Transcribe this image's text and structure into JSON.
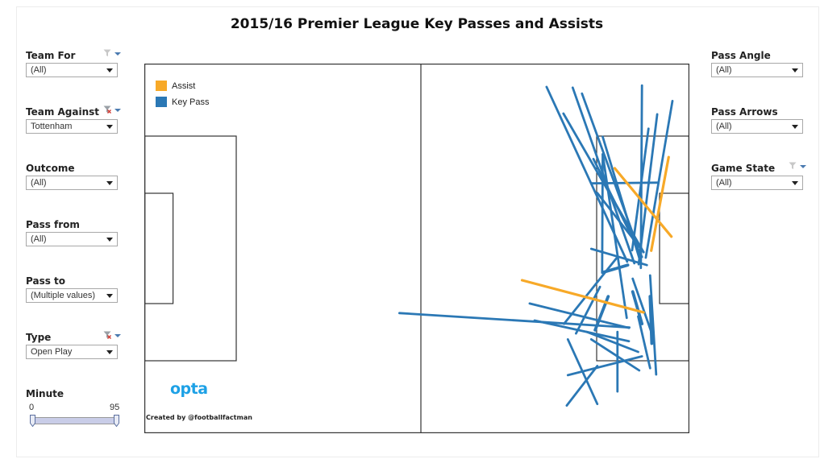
{
  "title": "2015/16 Premier League Key Passes and Assists",
  "filters_left": [
    {
      "label": "Team For",
      "value": "(All)",
      "icon": "funnel-icon"
    },
    {
      "label": "Team Against",
      "value": "Tottenham",
      "icon": "funnel-clear-icon"
    },
    {
      "label": "Outcome",
      "value": "(All)",
      "icon": ""
    },
    {
      "label": "Pass from",
      "value": "(All)",
      "icon": ""
    },
    {
      "label": "Pass to",
      "value": "(Multiple values)",
      "icon": ""
    },
    {
      "label": "Type",
      "value": "Open Play",
      "icon": "funnel-clear-icon"
    }
  ],
  "filters_right": [
    {
      "label": "Pass Angle",
      "value": "(All)",
      "icon": ""
    },
    {
      "label": "Pass Arrows",
      "value": "(All)",
      "icon": ""
    },
    {
      "label": "Game State",
      "value": "(All)",
      "icon": "funnel-icon"
    }
  ],
  "minute": {
    "label": "Minute",
    "min": "0",
    "max": "95"
  },
  "legend": [
    {
      "label": "Assist",
      "color": "#f7a928"
    },
    {
      "label": "Key Pass",
      "color": "#2b78b5"
    }
  ],
  "brand": "opta",
  "credit": "Created by @footballfactman",
  "colors": {
    "assist": "#f7a928",
    "key_pass": "#2b78b5",
    "pitch_line": "#333333",
    "brand": "#1da1e6"
  },
  "chart_data": {
    "type": "scatter",
    "description_units": "pitch coordinates 0-100 (x along length toward right goal, y across width top to bottom)",
    "passes": [
      {
        "type": "Key Pass",
        "x1": 73.8,
        "y1": 6.3,
        "x2": 88.6,
        "y2": 53.6
      },
      {
        "type": "Key Pass",
        "x1": 78.6,
        "y1": 6.5,
        "x2": 89.9,
        "y2": 54.0
      },
      {
        "type": "Key Pass",
        "x1": 76.9,
        "y1": 13.5,
        "x2": 91.6,
        "y2": 51.0
      },
      {
        "type": "Key Pass",
        "x1": 80.3,
        "y1": 8.1,
        "x2": 90.5,
        "y2": 49.5
      },
      {
        "type": "Key Pass",
        "x1": 91.3,
        "y1": 5.9,
        "x2": 91.1,
        "y2": 55.3
      },
      {
        "type": "Key Pass",
        "x1": 94.1,
        "y1": 13.7,
        "x2": 90.7,
        "y2": 54.3
      },
      {
        "type": "Key Pass",
        "x1": 96.9,
        "y1": 10.1,
        "x2": 92.0,
        "y2": 52.5
      },
      {
        "type": "Key Pass",
        "x1": 92.5,
        "y1": 17.6,
        "x2": 89.5,
        "y2": 50.5
      },
      {
        "type": "Key Pass",
        "x1": 84.1,
        "y1": 19.8,
        "x2": 91.0,
        "y2": 53.6
      },
      {
        "type": "Key Pass",
        "x1": 82.4,
        "y1": 25.8,
        "x2": 91.3,
        "y2": 52.3
      },
      {
        "type": "Key Pass",
        "x1": 83.1,
        "y1": 35.0,
        "x2": 91.6,
        "y2": 51.0
      },
      {
        "type": "Key Pass",
        "x1": 82.0,
        "y1": 32.4,
        "x2": 94.1,
        "y2": 32.2
      },
      {
        "type": "Key Pass",
        "x1": 84.1,
        "y1": 24.5,
        "x2": 84.0,
        "y2": 56.6
      },
      {
        "type": "Key Pass",
        "x1": 82.0,
        "y1": 50.1,
        "x2": 92.2,
        "y2": 54.5
      },
      {
        "type": "Key Pass",
        "x1": 88.7,
        "y1": 54.5,
        "x2": 84.1,
        "y2": 56.5
      },
      {
        "type": "Key Pass",
        "x1": 86.6,
        "y1": 52.7,
        "x2": 77.0,
        "y2": 70.4
      },
      {
        "type": "Key Pass",
        "x1": 83.6,
        "y1": 60.4,
        "x2": 79.2,
        "y2": 73.0
      },
      {
        "type": "Key Pass",
        "x1": 85.1,
        "y1": 63.0,
        "x2": 82.7,
        "y2": 72.1
      },
      {
        "type": "Key Pass",
        "x1": 89.6,
        "y1": 58.2,
        "x2": 93.1,
        "y2": 73.0
      },
      {
        "type": "Key Pass",
        "x1": 89.6,
        "y1": 61.7,
        "x2": 91.3,
        "y2": 70.4
      },
      {
        "type": "Key Pass",
        "x1": 92.8,
        "y1": 63.0,
        "x2": 93.1,
        "y2": 75.7
      },
      {
        "type": "Key Pass",
        "x1": 92.8,
        "y1": 57.3,
        "x2": 93.9,
        "y2": 84.1
      },
      {
        "type": "Key Pass",
        "x1": 90.6,
        "y1": 68.4,
        "x2": 92.8,
        "y2": 82.4
      },
      {
        "type": "Key Pass",
        "x1": 46.8,
        "y1": 67.5,
        "x2": 89.0,
        "y2": 71.4
      },
      {
        "type": "Key Pass",
        "x1": 70.7,
        "y1": 64.9,
        "x2": 88.9,
        "y2": 71.5
      },
      {
        "type": "Key Pass",
        "x1": 71.6,
        "y1": 69.5,
        "x2": 88.9,
        "y2": 75.1
      },
      {
        "type": "Key Pass",
        "x1": 81.2,
        "y1": 72.6,
        "x2": 90.6,
        "y2": 78.0
      },
      {
        "type": "Key Pass",
        "x1": 77.7,
        "y1": 74.6,
        "x2": 83.1,
        "y2": 92.1
      },
      {
        "type": "Key Pass",
        "x1": 83.1,
        "y1": 81.8,
        "x2": 77.5,
        "y2": 92.5
      },
      {
        "type": "Key Pass",
        "x1": 77.7,
        "y1": 84.3,
        "x2": 91.3,
        "y2": 79.2
      },
      {
        "type": "Key Pass",
        "x1": 82.0,
        "y1": 74.6,
        "x2": 90.8,
        "y2": 83.0
      },
      {
        "type": "Key Pass",
        "x1": 86.8,
        "y1": 72.6,
        "x2": 86.8,
        "y2": 88.7
      },
      {
        "type": "Key Pass",
        "x1": 84.1,
        "y1": 24.5,
        "x2": 88.5,
        "y2": 68.8
      },
      {
        "type": "Assist",
        "x1": 86.3,
        "y1": 28.3,
        "x2": 96.7,
        "y2": 46.8
      },
      {
        "type": "Assist",
        "x1": 96.2,
        "y1": 25.3,
        "x2": 93.0,
        "y2": 50.6
      },
      {
        "type": "Assist",
        "x1": 69.3,
        "y1": 58.6,
        "x2": 91.6,
        "y2": 67.3
      }
    ]
  }
}
